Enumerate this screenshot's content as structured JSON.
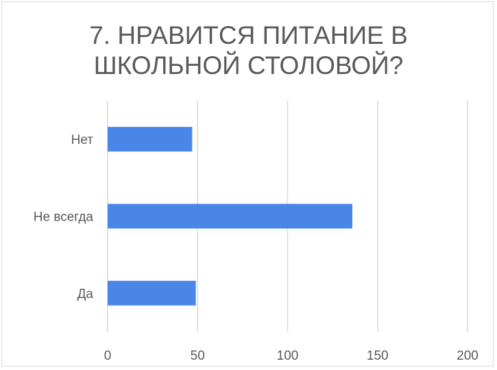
{
  "chart_data": {
    "type": "bar",
    "orientation": "horizontal",
    "title_lines": [
      "7. НРАВИТСЯ ПИТАНИЕ В",
      "ШКОЛЬНОЙ СТОЛОВОЙ?"
    ],
    "categories": [
      "Нет",
      "Не всегда",
      "Да"
    ],
    "values": [
      47,
      136,
      49
    ],
    "xlim": [
      0,
      200
    ],
    "xticks": [
      "0",
      "50",
      "100",
      "150",
      "200"
    ],
    "grid": true,
    "bar_color": "#4a86e8",
    "grid_color": "#d9d9d9",
    "text_color": "#595959"
  }
}
